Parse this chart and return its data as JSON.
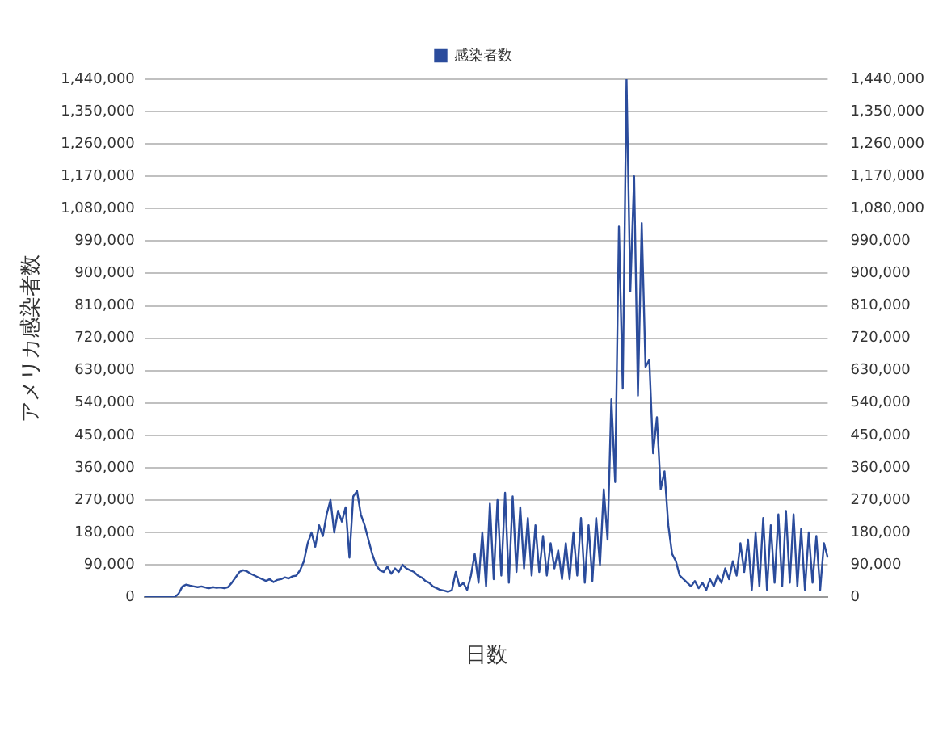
{
  "chart_data": {
    "type": "line",
    "xlabel": "日数",
    "ylabel": "アメリカ感染者数",
    "categories": [
      null,
      null,
      null,
      null,
      null,
      null,
      null,
      null,
      null,
      null,
      null,
      null,
      null,
      null,
      null,
      null,
      null,
      null,
      null,
      null,
      null,
      null,
      null,
      null,
      null,
      null,
      null,
      null,
      null,
      null,
      null,
      null,
      null,
      null,
      null,
      null,
      null,
      null,
      null,
      null,
      null,
      null,
      null,
      null,
      null,
      null,
      null,
      null,
      null,
      null,
      null,
      null,
      null,
      null,
      null,
      null,
      null,
      null,
      null,
      null,
      null,
      null,
      null,
      null,
      null,
      null,
      null,
      null,
      null,
      null,
      null,
      null,
      null,
      null,
      null,
      null,
      null,
      null,
      null,
      null,
      null,
      null,
      null,
      null,
      null,
      null,
      null,
      null,
      null,
      null,
      null,
      null,
      null,
      null,
      null,
      null,
      null,
      null,
      null,
      null,
      null,
      null,
      null,
      null,
      null,
      null,
      null,
      null,
      null,
      null,
      null,
      null,
      null,
      null,
      null,
      null,
      null,
      null,
      null,
      null,
      null,
      null,
      null,
      null,
      null,
      null,
      null,
      null,
      null,
      null,
      null,
      null,
      null,
      null,
      null,
      null,
      null,
      null,
      null,
      null,
      null,
      null,
      null,
      null,
      null,
      null,
      null,
      null,
      null,
      null,
      null,
      null,
      null,
      null,
      null,
      null,
      null,
      null,
      null,
      null,
      null,
      null,
      null,
      null,
      null,
      null,
      null,
      null,
      null,
      null,
      null,
      null,
      null,
      null,
      null,
      null,
      null,
      null,
      null,
      null,
      null
    ],
    "series": [
      {
        "name": "感染者数",
        "color": "#2b4c9c",
        "values": [
          0,
          0,
          0,
          0,
          0,
          0,
          0,
          0,
          0,
          10000,
          30000,
          35000,
          32000,
          30000,
          28000,
          30000,
          27000,
          25000,
          28000,
          26000,
          27000,
          25000,
          28000,
          40000,
          55000,
          70000,
          75000,
          72000,
          65000,
          60000,
          55000,
          50000,
          45000,
          50000,
          42000,
          48000,
          50000,
          55000,
          52000,
          58000,
          60000,
          75000,
          100000,
          150000,
          180000,
          140000,
          200000,
          170000,
          230000,
          270000,
          180000,
          240000,
          210000,
          250000,
          110000,
          280000,
          295000,
          230000,
          200000,
          160000,
          120000,
          90000,
          75000,
          70000,
          85000,
          65000,
          80000,
          70000,
          90000,
          80000,
          75000,
          70000,
          60000,
          55000,
          45000,
          40000,
          30000,
          25000,
          20000,
          18000,
          15000,
          20000,
          70000,
          30000,
          40000,
          20000,
          60000,
          120000,
          40000,
          180000,
          30000,
          260000,
          50000,
          270000,
          60000,
          290000,
          40000,
          280000,
          70000,
          250000,
          80000,
          220000,
          60000,
          200000,
          70000,
          170000,
          60000,
          150000,
          80000,
          130000,
          50000,
          150000,
          50000,
          180000,
          60000,
          220000,
          40000,
          200000,
          45000,
          220000,
          90000,
          300000,
          160000,
          550000,
          320000,
          1030000,
          580000,
          1440000,
          850000,
          1170000,
          560000,
          1040000,
          640000,
          660000,
          400000,
          500000,
          300000,
          350000,
          200000,
          120000,
          100000,
          60000,
          50000,
          40000,
          30000,
          45000,
          25000,
          40000,
          20000,
          50000,
          30000,
          60000,
          40000,
          80000,
          50000,
          100000,
          60000,
          150000,
          70000,
          160000,
          20000,
          180000,
          30000,
          220000,
          20000,
          200000,
          40000,
          230000,
          30000,
          240000,
          40000,
          230000,
          30000,
          190000,
          20000,
          180000,
          40000,
          170000,
          20000,
          150000,
          110000
        ]
      }
    ],
    "ylim": [
      0,
      1440000
    ],
    "yticks": [
      0,
      {
        "value": 90000,
        "label": "90,000"
      },
      {
        "value": 180000,
        "label": "180,000"
      },
      {
        "value": 270000,
        "label": "270,000"
      },
      {
        "value": 360000,
        "label": "360,000"
      },
      {
        "value": 450000,
        "label": "450,000"
      },
      {
        "value": 540000,
        "label": "540,000"
      },
      {
        "value": 630000,
        "label": "630,000"
      },
      {
        "value": 720000,
        "label": "720,000"
      },
      {
        "value": 810000,
        "label": "810,000"
      },
      {
        "value": 900000,
        "label": "900,000"
      },
      {
        "value": 990000,
        "label": "990,000"
      },
      {
        "value": 1080000,
        "label": "1,080,000"
      },
      {
        "value": 1170000,
        "label": "1,170,000"
      },
      {
        "value": 1260000,
        "label": "1,260,000"
      },
      {
        "value": 1350000,
        "label": "1,350,000"
      },
      {
        "value": 1440000,
        "label": "1,440,000"
      }
    ],
    "y2lim": [
      0,
      1440000
    ],
    "y2ticks": [
      0,
      {
        "value": 90000,
        "label": "90,000"
      },
      {
        "value": 180000,
        "label": "180,000"
      },
      {
        "value": 270000,
        "label": "270,000"
      },
      {
        "value": 360000,
        "label": "360,000"
      },
      {
        "value": 450000,
        "label": "450,000"
      },
      {
        "value": 540000,
        "label": "540,000"
      },
      {
        "value": 630000,
        "label": "630,000"
      },
      {
        "value": 720000,
        "label": "720,000"
      },
      {
        "value": 810000,
        "label": "810,000"
      },
      {
        "value": 900000,
        "label": "900,000"
      },
      {
        "value": 990000,
        "label": "990,000"
      },
      {
        "value": 1080000,
        "label": "1,080,000"
      },
      {
        "value": 1170000,
        "label": "1,170,000"
      },
      {
        "value": 1260000,
        "label": "1,260,000"
      },
      {
        "value": 1350000,
        "label": "1,350,000"
      },
      {
        "value": 1440000,
        "label": "1,440,000"
      }
    ],
    "grid": "y",
    "legend": "top"
  }
}
